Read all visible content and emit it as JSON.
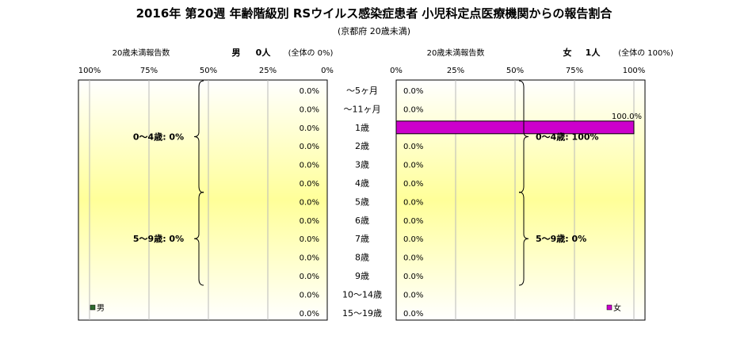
{
  "chart_data": {
    "type": "bar",
    "orientation": "horizontal-butterfly",
    "title": "2016年 第20週 年齢階級別 RSウイルス感染症患者 小児科定点医療機関からの報告割合",
    "subtitle": "(京都府 20歳未満)",
    "categories": [
      "～5ヶ月",
      "～11ヶ月",
      "1歳",
      "2歳",
      "3歳",
      "4歳",
      "5歳",
      "6歳",
      "7歳",
      "8歳",
      "9歳",
      "10～14歳",
      "15～19歳"
    ],
    "x_unit": "%",
    "xlim": [
      0,
      100
    ],
    "ticks": [
      "0%",
      "25%",
      "50%",
      "75%",
      "100%"
    ],
    "ticks_reversed": [
      "100%",
      "75%",
      "50%",
      "25%",
      "0%"
    ],
    "series": [
      {
        "name": "男",
        "side": "left",
        "color": "#2e6b2e",
        "values": [
          0,
          0,
          0,
          0,
          0,
          0,
          0,
          0,
          0,
          0,
          0,
          0,
          0
        ],
        "labels": [
          "0.0%",
          "0.0%",
          "0.0%",
          "0.0%",
          "0.0%",
          "0.0%",
          "0.0%",
          "0.0%",
          "0.0%",
          "0.0%",
          "0.0%",
          "0.0%",
          "0.0%"
        ],
        "header_left": "20歳未満報告数",
        "header_gender": "男",
        "header_count": "0人",
        "header_share": "(全体の  0%)",
        "groups": [
          {
            "label": "0～4歳: 0%",
            "from": 0,
            "to": 5
          },
          {
            "label": "5～9歳: 0%",
            "from": 6,
            "to": 10
          }
        ]
      },
      {
        "name": "女",
        "side": "right",
        "color": "#cc00cc",
        "values": [
          0,
          0,
          100,
          0,
          0,
          0,
          0,
          0,
          0,
          0,
          0,
          0,
          0
        ],
        "labels": [
          "0.0%",
          "0.0%",
          "100.0%",
          "0.0%",
          "0.0%",
          "0.0%",
          "0.0%",
          "0.0%",
          "0.0%",
          "0.0%",
          "0.0%",
          "0.0%",
          "0.0%"
        ],
        "header_left": "20歳未満報告数",
        "header_gender": "女",
        "header_count": "1人",
        "header_share": "(全体の  100%)",
        "groups": [
          {
            "label": "0～4歳: 100%",
            "from": 0,
            "to": 5
          },
          {
            "label": "5～9歳: 0%",
            "from": 6,
            "to": 10
          }
        ]
      }
    ],
    "legend": [
      "男",
      "女"
    ],
    "grid": true,
    "background_gradient": [
      "#ffffff",
      "#ffff99"
    ]
  }
}
